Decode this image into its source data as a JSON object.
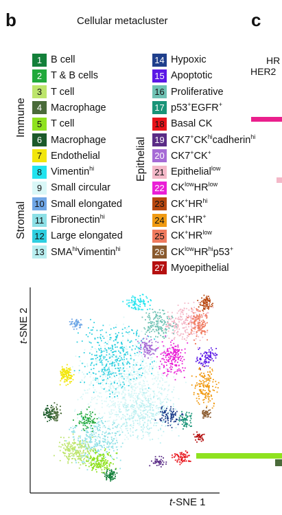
{
  "panel_b": {
    "letter": "b",
    "title": "Cellular metacluster",
    "group_labels": {
      "immune": "Immune",
      "stromal": "Stromal",
      "epithelial": "Epithelial"
    },
    "legend": [
      {
        "num": "1",
        "parts": [
          [
            "B cell",
            ""
          ]
        ],
        "color": "#13803a",
        "text_color": "#ffffff"
      },
      {
        "num": "2",
        "parts": [
          [
            "T & B cells",
            ""
          ]
        ],
        "color": "#21a93b",
        "text_color": "#ffffff"
      },
      {
        "num": "3",
        "parts": [
          [
            "T cell",
            ""
          ]
        ],
        "color": "#bde56b",
        "text_color": "#111111"
      },
      {
        "num": "4",
        "parts": [
          [
            "Macrophage",
            ""
          ]
        ],
        "color": "#4a6b3a",
        "text_color": "#ffffff"
      },
      {
        "num": "5",
        "parts": [
          [
            "T cell",
            ""
          ]
        ],
        "color": "#8fe21f",
        "text_color": "#111111"
      },
      {
        "num": "6",
        "parts": [
          [
            "Macrophage",
            ""
          ]
        ],
        "color": "#1c5a2a",
        "text_color": "#ffffff"
      },
      {
        "num": "7",
        "parts": [
          [
            "Endothelial",
            ""
          ]
        ],
        "color": "#f2e60b",
        "text_color": "#111111"
      },
      {
        "num": "8",
        "parts": [
          [
            "Vimentin",
            "hi"
          ]
        ],
        "color": "#22e3ef",
        "text_color": "#111111"
      },
      {
        "num": "9",
        "parts": [
          [
            "Small circular",
            ""
          ]
        ],
        "color": "#d9f7f7",
        "text_color": "#111111"
      },
      {
        "num": "10",
        "parts": [
          [
            "Small elongated",
            ""
          ]
        ],
        "color": "#6fa6e6",
        "text_color": "#111111"
      },
      {
        "num": "11",
        "parts": [
          [
            "Fibronectin",
            "hi"
          ]
        ],
        "color": "#8de0e6",
        "text_color": "#111111"
      },
      {
        "num": "12",
        "parts": [
          [
            "Large elongated",
            ""
          ]
        ],
        "color": "#2fcfe0",
        "text_color": "#111111"
      },
      {
        "num": "13",
        "parts": [
          [
            "SMA",
            "hi"
          ],
          [
            "Vimentin",
            "hi"
          ]
        ],
        "color": "#b8eef0",
        "text_color": "#111111"
      },
      {
        "num": "14",
        "parts": [
          [
            "Hypoxic",
            ""
          ]
        ],
        "color": "#1f3f8c",
        "text_color": "#ffffff"
      },
      {
        "num": "15",
        "parts": [
          [
            "Apoptotic",
            ""
          ]
        ],
        "color": "#5b18e6",
        "text_color": "#ffffff"
      },
      {
        "num": "16",
        "parts": [
          [
            "Proliferative",
            ""
          ]
        ],
        "color": "#6fc2b4",
        "text_color": "#111111"
      },
      {
        "num": "17",
        "parts": [
          [
            "p53",
            "+"
          ],
          [
            "EGFR",
            "+"
          ]
        ],
        "color": "#199478",
        "text_color": "#ffffff"
      },
      {
        "num": "18",
        "parts": [
          [
            "Basal CK",
            ""
          ]
        ],
        "color": "#e8131a",
        "text_color": "#111111"
      },
      {
        "num": "19",
        "parts": [
          [
            "CK7",
            "+"
          ],
          [
            "CK",
            "hi"
          ],
          [
            "cadherin",
            "hi"
          ]
        ],
        "color": "#5a2c86",
        "text_color": "#ffffff"
      },
      {
        "num": "20",
        "parts": [
          [
            "CK7",
            "+"
          ],
          [
            "CK",
            "+"
          ]
        ],
        "color": "#a66bd6",
        "text_color": "#ffffff"
      },
      {
        "num": "21",
        "parts": [
          [
            "Epithelial",
            "low"
          ]
        ],
        "color": "#f4b8c8",
        "text_color": "#111111"
      },
      {
        "num": "22",
        "parts": [
          [
            "CK",
            "low"
          ],
          [
            "HR",
            "low"
          ]
        ],
        "color": "#ea1fd6",
        "text_color": "#ffffff"
      },
      {
        "num": "23",
        "parts": [
          [
            "CK",
            "+"
          ],
          [
            "HR",
            "hi"
          ]
        ],
        "color": "#b8470f",
        "text_color": "#111111"
      },
      {
        "num": "24",
        "parts": [
          [
            "CK",
            "+"
          ],
          [
            "HR",
            "+"
          ]
        ],
        "color": "#f09a12",
        "text_color": "#111111"
      },
      {
        "num": "25",
        "parts": [
          [
            "CK",
            "+"
          ],
          [
            "HR",
            "low"
          ]
        ],
        "color": "#f07a5e",
        "text_color": "#111111"
      },
      {
        "num": "26",
        "parts": [
          [
            "CK",
            "low"
          ],
          [
            "HR",
            "hi"
          ],
          [
            "p53",
            "+"
          ]
        ],
        "color": "#8a5a2e",
        "text_color": "#ffffff"
      },
      {
        "num": "27",
        "parts": [
          [
            "Myoepithelial",
            ""
          ]
        ],
        "color": "#b51010",
        "text_color": "#ffffff"
      }
    ],
    "tsne": {
      "xlabel_italic": "t",
      "xlabel_rest": "-SNE 1",
      "ylabel_italic": "t",
      "ylabel_rest": "-SNE 2"
    }
  },
  "panel_c": {
    "letter": "c",
    "fragment_line1": "HR",
    "fragment_line2": "HER2",
    "bar_colors": [
      "#ea1f8c",
      "#f4b8c8",
      "#8fe21f",
      "#4a6b3a"
    ]
  }
}
